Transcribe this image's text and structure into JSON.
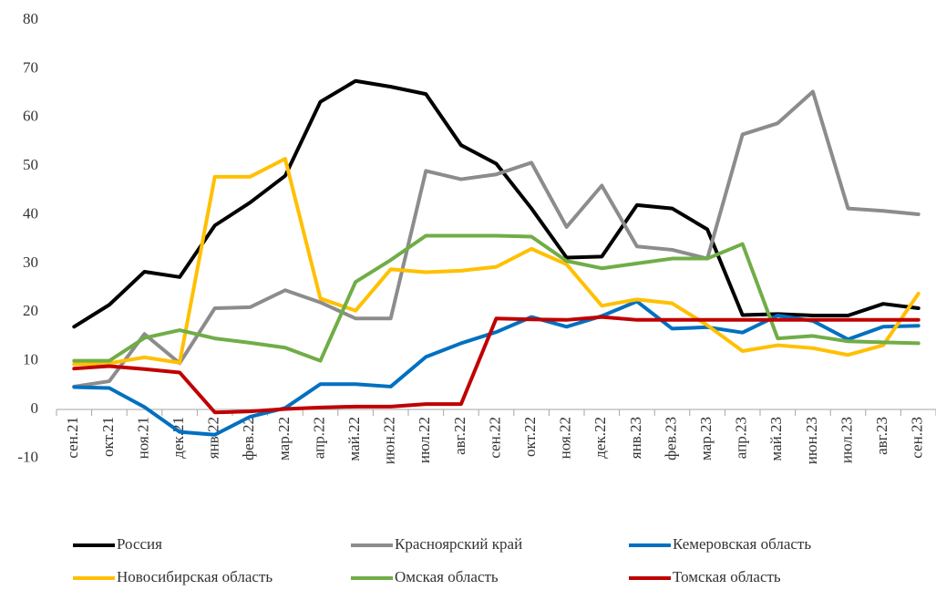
{
  "chart_data": {
    "type": "line",
    "categories": [
      "сен.21",
      "окт.21",
      "ноя.21",
      "дек.21",
      "янв.22",
      "фев.22",
      "мар.22",
      "апр.22",
      "май.22",
      "июн.22",
      "июл.22",
      "авг.22",
      "сен.22",
      "окт.22",
      "ноя.22",
      "дек.22",
      "янв.23",
      "фев.23",
      "мар.23",
      "апр.23",
      "май.23",
      "июн.23",
      "июл.23",
      "авг.23",
      "сен.23"
    ],
    "series": [
      {
        "name": "Россия",
        "color": "#000000",
        "values": [
          17,
          21.5,
          28.3,
          27.2,
          37.8,
          42.5,
          48,
          63.2,
          67.5,
          66.3,
          64.8,
          54.3,
          50.5,
          41.3,
          31.2,
          31.4,
          42,
          41.3,
          37,
          19.4,
          19.6,
          19.3,
          19.3,
          21.7,
          20.8
        ]
      },
      {
        "name": "Красноярский край",
        "color": "#8c8c8c",
        "values": [
          4.7,
          5.8,
          15.5,
          9.5,
          20.8,
          21,
          24.5,
          22,
          18.7,
          18.7,
          49,
          47.3,
          48.3,
          50.7,
          37.5,
          46,
          33.5,
          32.8,
          31,
          56.5,
          58.8,
          65.3,
          41.3,
          40.8,
          40.1
        ]
      },
      {
        "name": "Кемеровская область",
        "color": "#0070c0",
        "values": [
          4.6,
          4.4,
          0.5,
          -4.6,
          -5.2,
          -1.5,
          0.3,
          5.2,
          5.2,
          4.7,
          10.8,
          13.6,
          15.9,
          19,
          17,
          19.2,
          22.2,
          16.6,
          16.9,
          15.8,
          19.3,
          18.2,
          14.4,
          17,
          17.2
        ]
      },
      {
        "name": "Новосибирская область",
        "color": "#ffc000",
        "values": [
          9.3,
          9.5,
          10.7,
          9.6,
          47.8,
          47.8,
          51.5,
          22.8,
          20.3,
          28.8,
          28.2,
          28.5,
          29.3,
          33,
          29.8,
          21.3,
          22.6,
          21.8,
          17.3,
          12,
          13.2,
          12.6,
          11.2,
          13.2,
          23.8
        ]
      },
      {
        "name": "Омская область",
        "color": "#70ad47",
        "values": [
          10,
          10,
          14.7,
          16.3,
          14.6,
          13.7,
          12.7,
          10,
          26.2,
          30.7,
          35.7,
          35.7,
          35.7,
          35.5,
          30.5,
          29,
          30,
          31,
          31,
          34,
          14.6,
          15.1,
          14,
          13.8,
          13.6
        ]
      },
      {
        "name": "Томская область",
        "color": "#c00000",
        "values": [
          8.4,
          8.9,
          8.3,
          7.6,
          -0.6,
          -0.4,
          0.1,
          0.4,
          0.6,
          0.6,
          1.1,
          1.1,
          18.7,
          18.5,
          18.4,
          19,
          18.4,
          18.4,
          18.4,
          18.4,
          18.4,
          18.4,
          18.4,
          18.4,
          18.4
        ]
      }
    ],
    "ylim": [
      -10,
      80
    ],
    "yticks": [
      -10,
      0,
      10,
      20,
      30,
      40,
      50,
      60,
      70,
      80
    ],
    "grid": false
  }
}
